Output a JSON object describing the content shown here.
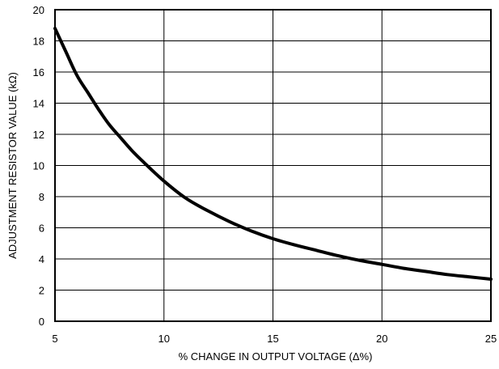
{
  "chart_data": {
    "type": "line",
    "title": "",
    "xlabel": "% CHANGE IN OUTPUT VOLTAGE (Δ%)",
    "ylabel": "ADJUSTMENT RESISTOR VALUE (kΩ)",
    "xlim": [
      5,
      25
    ],
    "ylim": [
      0,
      20
    ],
    "x_ticks": [
      5,
      10,
      15,
      20,
      25
    ],
    "y_ticks": [
      0,
      2,
      4,
      6,
      8,
      10,
      12,
      14,
      16,
      18,
      20
    ],
    "x_tick_labels": [
      "5",
      "10",
      "15",
      "20",
      "25"
    ],
    "y_tick_labels": [
      "0",
      "2",
      "4",
      "6",
      "8",
      "10",
      "12",
      "14",
      "16",
      "18",
      "20"
    ],
    "grid": true,
    "series": [
      {
        "x": [
          5,
          5.5,
          6,
          6.5,
          7,
          7.5,
          8,
          8.5,
          9,
          10,
          11,
          12,
          13,
          14,
          15,
          16,
          17,
          18,
          19,
          20,
          21,
          22,
          23,
          24,
          25
        ],
        "y": [
          18.8,
          17.3,
          15.8,
          14.7,
          13.6,
          12.6,
          11.8,
          11.0,
          10.3,
          9.0,
          7.9,
          7.1,
          6.4,
          5.8,
          5.3,
          4.9,
          4.55,
          4.2,
          3.9,
          3.65,
          3.4,
          3.2,
          3.0,
          2.85,
          2.7
        ]
      }
    ]
  }
}
